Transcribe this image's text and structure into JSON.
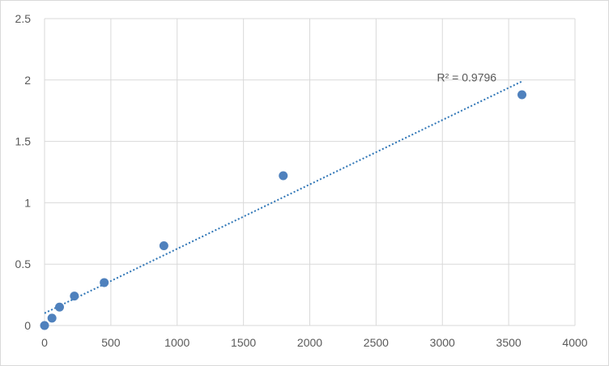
{
  "chart_data": {
    "type": "scatter",
    "title": "",
    "xlabel": "",
    "ylabel": "",
    "xlim": [
      0,
      4000
    ],
    "ylim": [
      0,
      2.5
    ],
    "x_ticks": [
      "0",
      "500",
      "1000",
      "1500",
      "2000",
      "2500",
      "3000",
      "3500",
      "4000"
    ],
    "y_ticks": [
      "0",
      "0.5",
      "1",
      "1.5",
      "2",
      "2.5"
    ],
    "grid": true,
    "legend": "none",
    "series": [
      {
        "x": [
          0,
          56,
          113,
          225,
          450,
          900,
          1800,
          3600
        ],
        "y": [
          0.0,
          0.06,
          0.15,
          0.24,
          0.35,
          0.65,
          1.22,
          1.88
        ]
      }
    ],
    "trendline": {
      "type": "linear",
      "style": "dotted",
      "x_range": [
        0,
        3600
      ],
      "label": "R² = 0.9796"
    },
    "colors": {
      "marker": "#4f81bd",
      "trendline": "#2e75b6",
      "grid": "#d9d9d9",
      "text": "#595959"
    }
  }
}
